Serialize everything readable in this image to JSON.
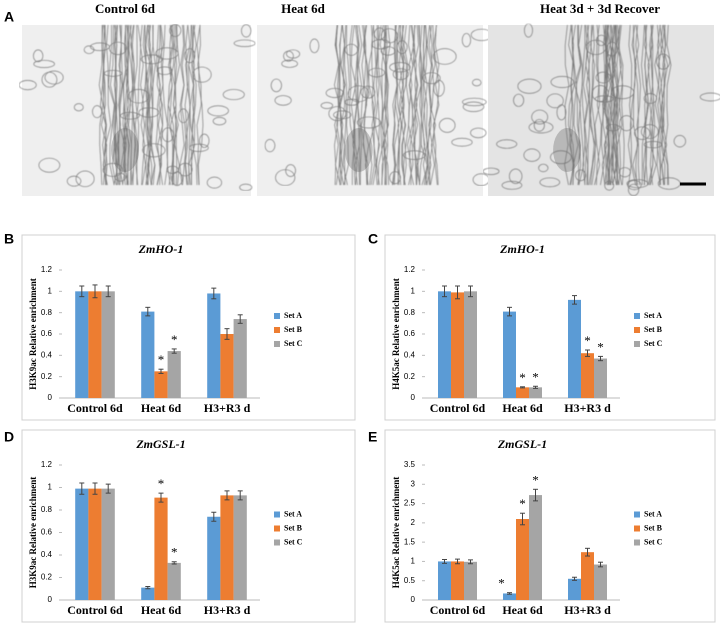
{
  "figure": {
    "panel_labels": [
      "A",
      "B",
      "C",
      "D",
      "E"
    ],
    "image_titles": [
      "Control 6d",
      "Heat 6d",
      "Heat 3d + 3d Recover"
    ]
  },
  "chart_data": [
    {
      "type": "bar",
      "title": "ZmHO-1",
      "ylabel": "H3K9ac Relative enrichment",
      "categories": [
        "Control 6d",
        "Heat 6d",
        "H3+R3 d"
      ],
      "ylim": [
        0,
        1.2
      ],
      "yticks": [
        0,
        0.2,
        0.4,
        0.6,
        0.8,
        1,
        1.2
      ],
      "series": [
        {
          "name": "Set A",
          "color": "#5b9bd5",
          "values": [
            1.0,
            0.81,
            0.98
          ],
          "errors": [
            0.05,
            0.04,
            0.05
          ],
          "annotations": [
            null,
            null,
            null
          ]
        },
        {
          "name": "Set B",
          "color": "#ed7d31",
          "values": [
            1.0,
            0.25,
            0.6
          ],
          "errors": [
            0.06,
            0.02,
            0.05
          ],
          "annotations": [
            null,
            "*",
            null
          ]
        },
        {
          "name": "Set C",
          "color": "#a5a5a5",
          "values": [
            1.0,
            0.44,
            0.74
          ],
          "errors": [
            0.05,
            0.02,
            0.04
          ],
          "annotations": [
            null,
            "*",
            null
          ]
        }
      ]
    },
    {
      "type": "bar",
      "title": "ZmHO-1",
      "ylabel": "H4K5ac Relative enrichment",
      "categories": [
        "Control 6d",
        "Heat 6d",
        "H3+R3 d"
      ],
      "ylim": [
        0,
        1.2
      ],
      "yticks": [
        0,
        0.2,
        0.4,
        0.6,
        0.8,
        1,
        1.2
      ],
      "series": [
        {
          "name": "Set A",
          "color": "#5b9bd5",
          "values": [
            1.0,
            0.81,
            0.92
          ],
          "errors": [
            0.05,
            0.04,
            0.04
          ],
          "annotations": [
            null,
            null,
            null
          ]
        },
        {
          "name": "Set B",
          "color": "#ed7d31",
          "values": [
            0.99,
            0.1,
            0.42
          ],
          "errors": [
            0.06,
            0.005,
            0.03
          ],
          "annotations": [
            null,
            "*",
            "*"
          ]
        },
        {
          "name": "Set C",
          "color": "#a5a5a5",
          "values": [
            1.0,
            0.1,
            0.37
          ],
          "errors": [
            0.05,
            0.01,
            0.02
          ],
          "annotations": [
            null,
            "*",
            "*"
          ]
        }
      ]
    },
    {
      "type": "bar",
      "title": "ZmGSL-1",
      "ylabel": "H3K9ac Relative enrichment",
      "categories": [
        "Control 6d",
        "Heat 6d",
        "H3+R3 d"
      ],
      "ylim": [
        0,
        1.2
      ],
      "yticks": [
        0,
        0.2,
        0.4,
        0.6,
        0.8,
        1,
        1.2
      ],
      "series": [
        {
          "name": "Set A",
          "color": "#5b9bd5",
          "values": [
            0.99,
            0.11,
            0.74
          ],
          "errors": [
            0.05,
            0.01,
            0.04
          ],
          "annotations": [
            null,
            null,
            null
          ]
        },
        {
          "name": "Set B",
          "color": "#ed7d31",
          "values": [
            0.99,
            0.91,
            0.93
          ],
          "errors": [
            0.05,
            0.04,
            0.04
          ],
          "annotations": [
            null,
            "*",
            null
          ]
        },
        {
          "name": "Set C",
          "color": "#a5a5a5",
          "values": [
            0.99,
            0.33,
            0.93
          ],
          "errors": [
            0.04,
            0.01,
            0.04
          ],
          "annotations": [
            null,
            "*",
            null
          ]
        }
      ]
    },
    {
      "type": "bar",
      "title": "ZmGSL-1",
      "ylabel": "H4K5ac Relative enrichment",
      "categories": [
        "Control 6d",
        "Heat 6d",
        "H3+R3 d"
      ],
      "ylim": [
        0,
        3.5
      ],
      "yticks": [
        0,
        0.5,
        1,
        1.5,
        2,
        2.5,
        3,
        3.5
      ],
      "series": [
        {
          "name": "Set A",
          "color": "#5b9bd5",
          "values": [
            1.0,
            0.17,
            0.55
          ],
          "errors": [
            0.05,
            0.02,
            0.04
          ],
          "annotations": [
            null,
            "*",
            null
          ]
        },
        {
          "name": "Set B",
          "color": "#ed7d31",
          "values": [
            1.0,
            2.1,
            1.24
          ],
          "errors": [
            0.06,
            0.15,
            0.1
          ],
          "annotations": [
            null,
            "*",
            null
          ]
        },
        {
          "name": "Set C",
          "color": "#a5a5a5",
          "values": [
            0.99,
            2.72,
            0.92
          ],
          "errors": [
            0.05,
            0.15,
            0.06
          ],
          "annotations": [
            null,
            "*",
            null
          ]
        }
      ]
    }
  ]
}
